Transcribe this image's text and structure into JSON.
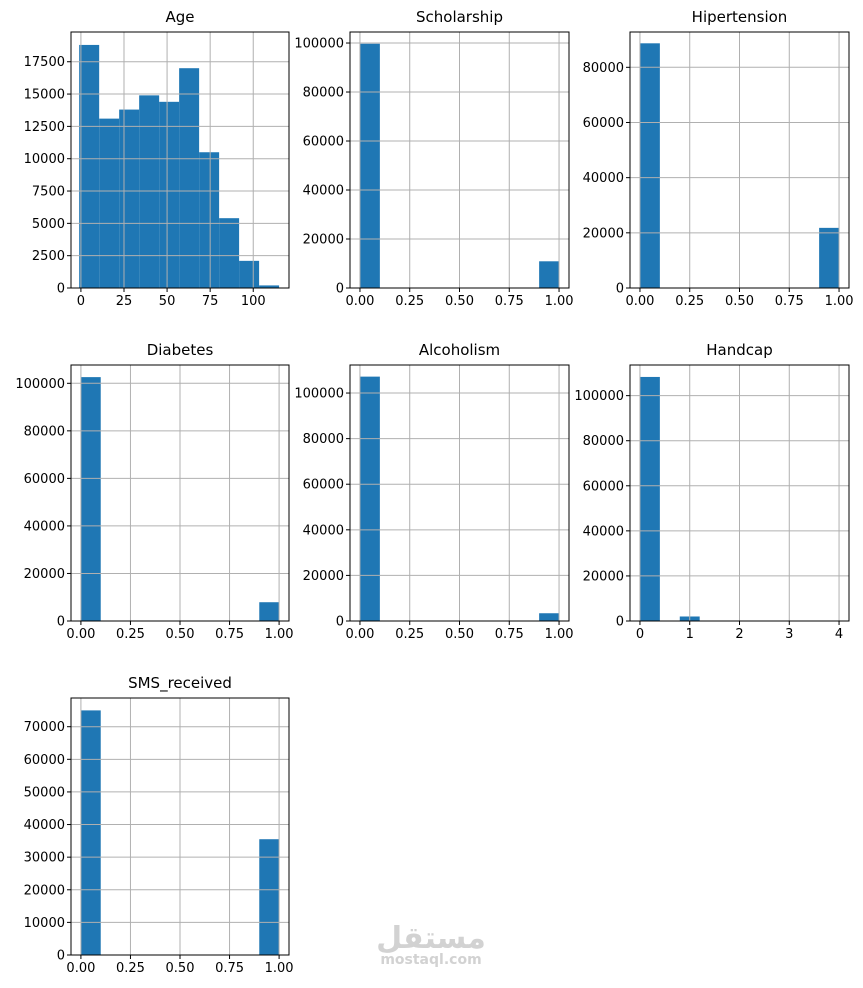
{
  "chart_data": [
    {
      "type": "bar",
      "title": "Age",
      "xlim": [
        -5.75,
        120.75
      ],
      "ylim": [
        0,
        19800
      ],
      "xticks": [
        0,
        25,
        50,
        75,
        100
      ],
      "yticks": [
        0,
        2500,
        5000,
        7500,
        10000,
        12500,
        15000,
        17500
      ],
      "bins": [
        {
          "x0": -1,
          "x1": 10.6,
          "count": 18800
        },
        {
          "x0": 10.6,
          "x1": 22.2,
          "count": 13100
        },
        {
          "x0": 22.2,
          "x1": 33.8,
          "count": 13800
        },
        {
          "x0": 33.8,
          "x1": 45.4,
          "count": 14900
        },
        {
          "x0": 45.4,
          "x1": 57.0,
          "count": 14400
        },
        {
          "x0": 57.0,
          "x1": 68.6,
          "count": 17000
        },
        {
          "x0": 68.6,
          "x1": 80.2,
          "count": 10500
        },
        {
          "x0": 80.2,
          "x1": 91.8,
          "count": 5400
        },
        {
          "x0": 91.8,
          "x1": 103.4,
          "count": 2100
        },
        {
          "x0": 103.4,
          "x1": 115.0,
          "count": 200
        }
      ]
    },
    {
      "type": "bar",
      "title": "Scholarship",
      "xlim": [
        -0.05,
        1.05
      ],
      "ylim": [
        0,
        104500
      ],
      "xticks": [
        0,
        0.25,
        0.5,
        0.75,
        1
      ],
      "xtick_labels": [
        "0.00",
        "0.25",
        "0.50",
        "0.75",
        "1.00"
      ],
      "yticks": [
        0,
        20000,
        40000,
        60000,
        80000,
        100000
      ],
      "bins": [
        {
          "x0": 0,
          "x1": 0.1,
          "count": 99700
        },
        {
          "x0": 0.9,
          "x1": 1.0,
          "count": 10900
        }
      ]
    },
    {
      "type": "bar",
      "title": "Hipertension",
      "xlim": [
        -0.05,
        1.05
      ],
      "ylim": [
        0,
        92800
      ],
      "xticks": [
        0,
        0.25,
        0.5,
        0.75,
        1
      ],
      "xtick_labels": [
        "0.00",
        "0.25",
        "0.50",
        "0.75",
        "1.00"
      ],
      "yticks": [
        0,
        20000,
        40000,
        60000,
        80000
      ],
      "bins": [
        {
          "x0": 0,
          "x1": 0.1,
          "count": 88700
        },
        {
          "x0": 0.9,
          "x1": 1.0,
          "count": 21800
        }
      ]
    },
    {
      "type": "bar",
      "title": "Diabetes",
      "xlim": [
        -0.05,
        1.05
      ],
      "ylim": [
        0,
        107700
      ],
      "xticks": [
        0,
        0.25,
        0.5,
        0.75,
        1
      ],
      "xtick_labels": [
        "0.00",
        "0.25",
        "0.50",
        "0.75",
        "1.00"
      ],
      "yticks": [
        0,
        20000,
        40000,
        60000,
        80000,
        100000
      ],
      "bins": [
        {
          "x0": 0,
          "x1": 0.1,
          "count": 102600
        },
        {
          "x0": 0.9,
          "x1": 1.0,
          "count": 7900
        }
      ]
    },
    {
      "type": "bar",
      "title": "Alcoholism",
      "xlim": [
        -0.05,
        1.05
      ],
      "ylim": [
        0,
        112300
      ],
      "xticks": [
        0,
        0.25,
        0.5,
        0.75,
        1
      ],
      "xtick_labels": [
        "0.00",
        "0.25",
        "0.50",
        "0.75",
        "1.00"
      ],
      "yticks": [
        0,
        20000,
        40000,
        60000,
        80000,
        100000
      ],
      "bins": [
        {
          "x0": 0,
          "x1": 0.1,
          "count": 107200
        },
        {
          "x0": 0.9,
          "x1": 1.0,
          "count": 3400
        }
      ]
    },
    {
      "type": "bar",
      "title": "Handcap",
      "xlim": [
        -0.2,
        4.2
      ],
      "ylim": [
        0,
        113600
      ],
      "xticks": [
        0,
        1,
        2,
        3,
        4
      ],
      "yticks": [
        0,
        20000,
        40000,
        60000,
        80000,
        100000
      ],
      "bins": [
        {
          "x0": 0,
          "x1": 0.4,
          "count": 108300
        },
        {
          "x0": 0.8,
          "x1": 1.2,
          "count": 2000
        },
        {
          "x0": 2.0,
          "x1": 2.4,
          "count": 200
        },
        {
          "x0": 2.8,
          "x1": 3.2,
          "count": 13
        },
        {
          "x0": 3.6,
          "x1": 4.0,
          "count": 3
        }
      ]
    },
    {
      "type": "bar",
      "title": "SMS_received",
      "xlim": [
        -0.05,
        1.05
      ],
      "ylim": [
        0,
        78800
      ],
      "xticks": [
        0,
        0.25,
        0.5,
        0.75,
        1
      ],
      "xtick_labels": [
        "0.00",
        "0.25",
        "0.50",
        "0.75",
        "1.00"
      ],
      "yticks": [
        0,
        10000,
        20000,
        30000,
        40000,
        50000,
        60000,
        70000
      ],
      "bins": [
        {
          "x0": 0,
          "x1": 0.1,
          "count": 75000
        },
        {
          "x0": 0.9,
          "x1": 1.0,
          "count": 35500
        }
      ]
    }
  ],
  "watermark": {
    "arabic": "مستقل",
    "latin": "mostaql.com"
  },
  "colors": {
    "bar": "#1f77b4",
    "grid": "#b0b0b0",
    "axis": "#000000",
    "text": "#000000"
  }
}
